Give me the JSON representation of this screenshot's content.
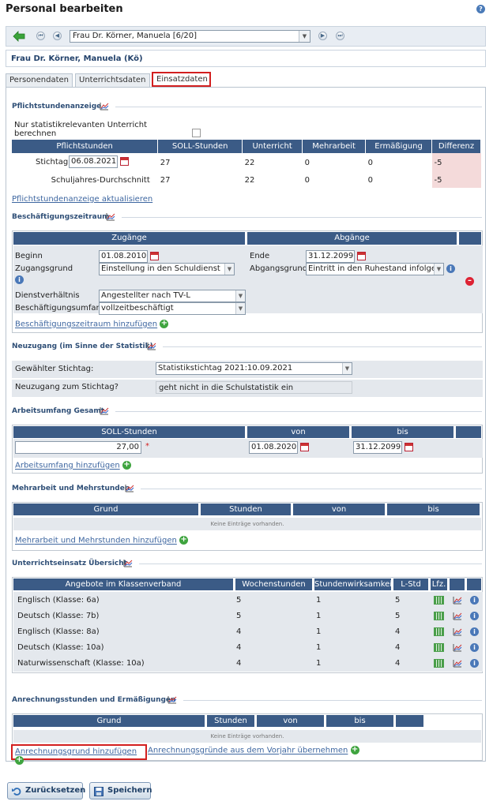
{
  "page": {
    "title": "Personal bearbeiten"
  },
  "nav": {
    "person_select": "Frau Dr. Körner, Manuela [6/20]"
  },
  "person_header": "Frau Dr. Körner, Manuela (Kö)",
  "tabs": [
    "Personendaten",
    "Unterrichtsdaten",
    "Einsatzdaten"
  ],
  "pflicht": {
    "title": "Pflichtstundenanzeige",
    "checkbox_label": "Nur statistikrelevanten Unterricht berechnen",
    "headers": [
      "Pflichtstunden",
      "SOLL-Stunden",
      "Unterricht",
      "Mehrarbeit",
      "Ermäßigung",
      "Differenz"
    ],
    "rows": [
      {
        "label": "Stichtag",
        "date": "06.08.2021",
        "soll": "27",
        "unterricht": "22",
        "mehrarbeit": "0",
        "ermaessigung": "0",
        "differenz": "-5"
      },
      {
        "label": "Schuljahres-Durchschnitt",
        "soll": "27",
        "unterricht": "22",
        "mehrarbeit": "0",
        "ermaessigung": "0",
        "differenz": "-5"
      }
    ],
    "refresh_link": "Pflichtstundenanzeige aktualisieren"
  },
  "beschaeftigung": {
    "title": "Beschäftigungszeitraum",
    "zugaenge": "Zugänge",
    "abgaenge": "Abgänge",
    "beginn_label": "Beginn",
    "beginn_value": "01.08.2010",
    "zugangsgrund_label": "Zugangsgrund",
    "zugangsgrund_value": "Einstellung in den Schuldienst",
    "dienst_label": "Dienstverhältnis",
    "dienst_value": "Angestellter nach TV-L",
    "umfang_label": "Beschäftigungsumfang",
    "umfang_value": "vollzeitbeschäftigt",
    "ende_label": "Ende",
    "ende_value": "31.12.2099",
    "abgangsgrund_label": "Abgangsgrund",
    "abgangsgrund_value": "Eintritt in den Ruhestand infolge",
    "add_link": "Beschäftigungszeitraum hinzufügen"
  },
  "neuzugang": {
    "title": "Neuzugang (im Sinne der Statistik)",
    "stichtag_label": "Gewählter Stichtag:",
    "stichtag_value": "Statistikstichtag 2021:10.09.2021",
    "neuzugang_label": "Neuzugang zum Stichtag?",
    "neuzugang_value": "geht nicht in die Schulstatistik ein"
  },
  "arbeitsumfang": {
    "title": "Arbeitsumfang Gesamt",
    "headers": [
      "SOLL-Stunden",
      "von",
      "bis"
    ],
    "soll": "27,00",
    "von": "01.08.2020",
    "bis": "31.12.2099",
    "add_link": "Arbeitsumfang hinzufügen"
  },
  "mehrarbeit": {
    "title": "Mehrarbeit und Mehrstunden",
    "headers": [
      "Grund",
      "Stunden",
      "von",
      "bis"
    ],
    "empty": "Keine Einträge vorhanden.",
    "add_link": "Mehrarbeit und Mehrstunden hinzufügen"
  },
  "unterricht": {
    "title": "Unterrichtseinsatz Übersicht",
    "headers": [
      "Angebote im Klassenverband",
      "Wochenstunden",
      "Stundenwirksamkeit",
      "L-Std",
      "Lfz."
    ],
    "rows": [
      {
        "angebot": "Englisch (Klasse: 6a)",
        "wochen": "5",
        "wirk": "1",
        "lstd": "5"
      },
      {
        "angebot": "Deutsch (Klasse: 7b)",
        "wochen": "5",
        "wirk": "1",
        "lstd": "5"
      },
      {
        "angebot": "Englisch (Klasse: 8a)",
        "wochen": "4",
        "wirk": "1",
        "lstd": "4"
      },
      {
        "angebot": "Deutsch (Klasse: 10a)",
        "wochen": "4",
        "wirk": "1",
        "lstd": "4"
      },
      {
        "angebot": "Naturwissenschaft (Klasse: 10a)",
        "wochen": "4",
        "wirk": "1",
        "lstd": "4"
      }
    ]
  },
  "anrechnung": {
    "title": "Anrechnungsstunden und Ermäßigungen",
    "headers": [
      "Grund",
      "Stunden",
      "von",
      "bis"
    ],
    "empty": "Keine Einträge vorhanden.",
    "add_link": "Anrechnungsgrund hinzufügen",
    "copy_link": "Anrechnungsgründe aus dem Vorjahr übernehmen"
  },
  "footer": {
    "reset": "Zurücksetzen",
    "save": "Speichern"
  }
}
